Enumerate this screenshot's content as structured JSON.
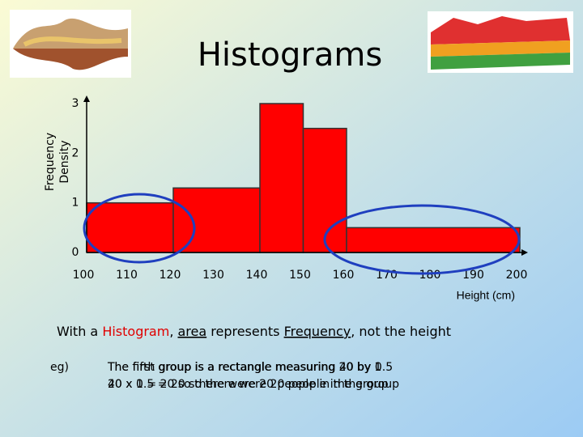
{
  "chart_data": {
    "type": "histogram",
    "title": "Histograms",
    "y_label": [
      "Frequency",
      "Density"
    ],
    "x_label": "Height (cm)",
    "bins": [
      100,
      120,
      140,
      150,
      160,
      200
    ],
    "values": [
      1,
      1.3,
      3,
      2.5,
      0.5
    ],
    "color": "#ff0000",
    "xlim": [
      100,
      200
    ],
    "xticks": [
      100,
      110,
      120,
      130,
      140,
      150,
      160,
      170,
      180,
      190,
      200
    ],
    "ylim": [
      0,
      3
    ],
    "yticks": [
      0,
      1,
      2,
      3
    ]
  },
  "body": {
    "parts": [
      "With a ",
      "Histogram",
      ", ",
      "area",
      " represents ",
      "Frequency",
      ", not the height"
    ]
  },
  "example": {
    "label": "eg)",
    "lines_a": [
      "The fifth group is a rectangle measuring 40 by 0.5",
      "40 x 0.5 = 20 so there were 20 people in the group"
    ],
    "lines_b": [
      "The first group is a rectangle measuring 20 by 1",
      "20 x 1 = 20 so there were 20 people in the group"
    ]
  }
}
